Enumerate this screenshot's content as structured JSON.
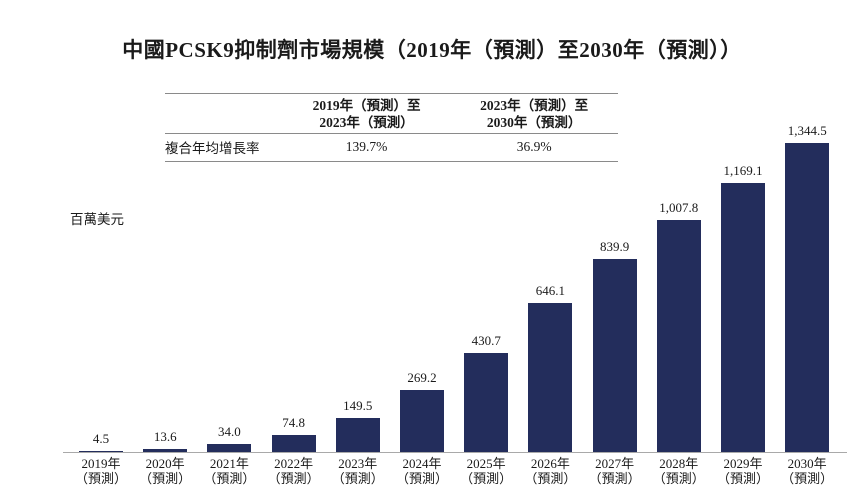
{
  "title": "中國PCSK9抑制劑市場規模（2019年（預測）至2030年（預測））",
  "cagr_table": {
    "row_label": "複合年均增長率",
    "columns": [
      {
        "header_line1": "2019年（預測）至",
        "header_line2": "2023年（預測）",
        "value": "139.7%"
      },
      {
        "header_line1": "2023年（預測）至",
        "header_line2": "2030年（預測）",
        "value": "36.9%"
      }
    ]
  },
  "chart_data": {
    "type": "bar",
    "title": "中國PCSK9抑制劑市場規模（2019年（預測）至2030年（預測））",
    "ylabel": "百萬美元",
    "categories": [
      "2019年",
      "2020年",
      "2021年",
      "2022年",
      "2023年",
      "2024年",
      "2025年",
      "2026年",
      "2027年",
      "2028年",
      "2029年",
      "2030年"
    ],
    "category_suffix": "（預測）",
    "values": [
      4.5,
      13.6,
      34.0,
      74.8,
      149.5,
      269.2,
      430.7,
      646.1,
      839.9,
      1007.8,
      1169.1,
      1344.5
    ],
    "value_labels": [
      "4.5",
      "13.6",
      "34.0",
      "74.8",
      "149.5",
      "269.2",
      "430.7",
      "646.1",
      "839.9",
      "1,007.8",
      "1,169.1",
      "1,344.5"
    ],
    "ylim": [
      0,
      1400
    ],
    "bar_color": "#232d5c",
    "axis_line_color": "#a9a9a9",
    "grid": false,
    "legend": "none"
  }
}
